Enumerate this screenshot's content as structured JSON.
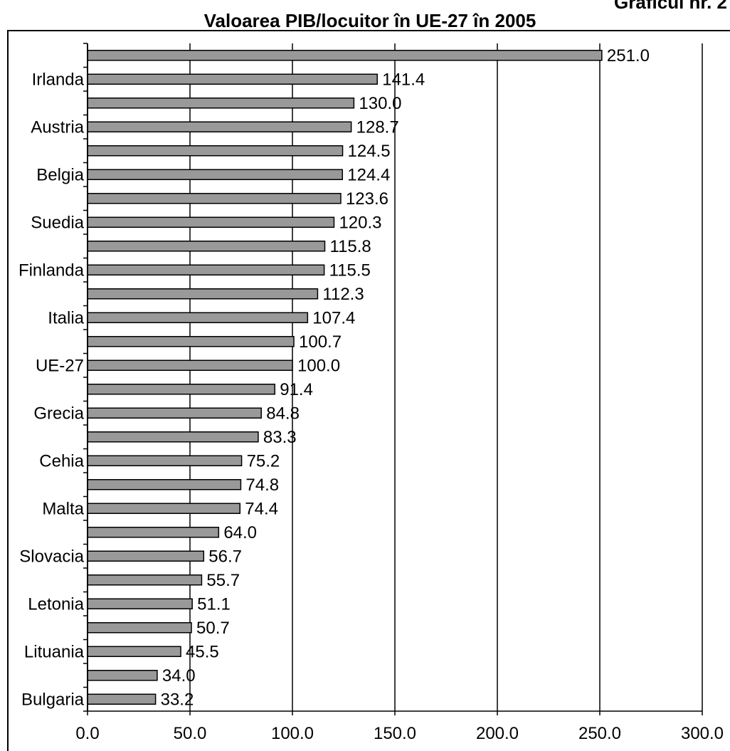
{
  "header": {
    "figure_number": "Graficul nr. 2"
  },
  "chart_data": {
    "type": "bar",
    "orientation": "horizontal",
    "title": "Valoarea PIB/locuitor în UE-27 în 2005",
    "categories": [
      "",
      "Irlanda",
      "",
      "Austria",
      "",
      "Belgia",
      "",
      "Suedia",
      "",
      "Finlanda",
      "",
      "Italia",
      "",
      "UE-27",
      "",
      "Grecia",
      "",
      "Cehia",
      "",
      "Malta",
      "",
      "Slovacia",
      "",
      "Letonia",
      "",
      "Lituania",
      "",
      "Bulgaria"
    ],
    "values": [
      251.0,
      141.4,
      130.0,
      128.7,
      124.5,
      124.4,
      123.6,
      120.3,
      115.8,
      115.5,
      112.3,
      107.4,
      100.7,
      100.0,
      91.4,
      84.8,
      83.3,
      75.2,
      74.8,
      74.4,
      64.0,
      56.7,
      55.7,
      51.1,
      50.7,
      45.5,
      34.0,
      33.2
    ],
    "xlim": [
      0,
      300
    ],
    "xticks": [
      0,
      50,
      100,
      150,
      200,
      250,
      300
    ],
    "xtick_labels": [
      "0.0",
      "50.0",
      "100.0",
      "150.0",
      "200.0",
      "250.0",
      "300.0"
    ],
    "grid": "vertical",
    "colors": {
      "bar_fill": "#999999",
      "bar_outline": "#000000"
    }
  }
}
